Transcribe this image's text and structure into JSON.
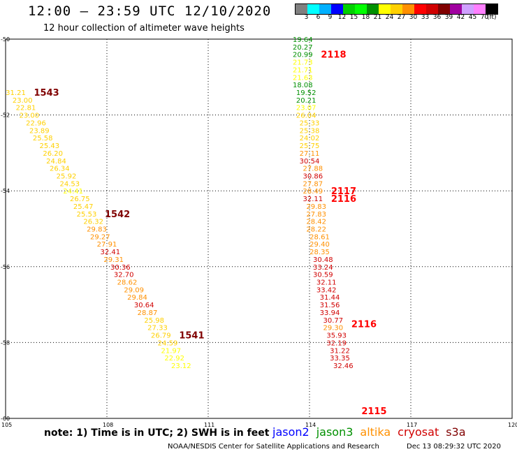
{
  "title": "12:00 – 23:59 UTC 12/10/2020",
  "subtitle": "12 hour collection of altimeter wave heights",
  "colorbar": {
    "unit": "(ft)",
    "colors": [
      "#808080",
      "#00ffff",
      "#00b0ff",
      "#0000ff",
      "#00d000",
      "#00ff00",
      "#009000",
      "#ffff00",
      "#ffd000",
      "#ff9000",
      "#ff0000",
      "#d00000",
      "#800000",
      "#a000a0",
      "#d0a0ff",
      "#ff80ff",
      "#000000"
    ],
    "labels": [
      "3",
      "6",
      "9",
      "12",
      "15",
      "18",
      "21",
      "24",
      "27",
      "30",
      "33",
      "36",
      "39",
      "42",
      "45",
      "70"
    ]
  },
  "axes": {
    "lon_ticks": [
      "105",
      "108",
      "111",
      "114",
      "117",
      "120"
    ],
    "lat_ticks": [
      "-50",
      "-52",
      "-54",
      "-56",
      "-58",
      "-60"
    ]
  },
  "tracks": [
    {
      "satellite_ids": [
        {
          "id": "1543",
          "lat": -51.4,
          "color": "#800000"
        },
        {
          "id": "1542",
          "lat": -54.6,
          "color": "#800000"
        },
        {
          "id": "1541",
          "lat": -57.8,
          "color": "#800000"
        }
      ],
      "points": [
        {
          "lon": 105.3,
          "lat": -51.4,
          "v": "31.21",
          "c": "#ffd000"
        },
        {
          "lon": 105.5,
          "lat": -51.6,
          "v": "23.00",
          "c": "#ffd000"
        },
        {
          "lon": 105.6,
          "lat": -51.8,
          "v": "22.81",
          "c": "#ffd000"
        },
        {
          "lon": 105.7,
          "lat": -52.0,
          "v": "23.00",
          "c": "#ffd000"
        },
        {
          "lon": 105.9,
          "lat": -52.2,
          "v": "22.96",
          "c": "#ffd000"
        },
        {
          "lon": 106.0,
          "lat": -52.4,
          "v": "23.89",
          "c": "#ffd000"
        },
        {
          "lon": 106.1,
          "lat": -52.6,
          "v": "25.58",
          "c": "#ffd000"
        },
        {
          "lon": 106.3,
          "lat": -52.8,
          "v": "25.43",
          "c": "#ffd000"
        },
        {
          "lon": 106.4,
          "lat": -53.0,
          "v": "26.20",
          "c": "#ffd000"
        },
        {
          "lon": 106.5,
          "lat": -53.2,
          "v": "24.84",
          "c": "#ffd000"
        },
        {
          "lon": 106.6,
          "lat": -53.4,
          "v": "26.34",
          "c": "#ffd000"
        },
        {
          "lon": 106.8,
          "lat": -53.6,
          "v": "25.92",
          "c": "#ffd000"
        },
        {
          "lon": 106.9,
          "lat": -53.8,
          "v": "24.53",
          "c": "#ffd000"
        },
        {
          "lon": 107.0,
          "lat": -54.0,
          "v": "24.41",
          "c": "#ffff00"
        },
        {
          "lon": 107.2,
          "lat": -54.2,
          "v": "26.75",
          "c": "#ffd000"
        },
        {
          "lon": 107.3,
          "lat": -54.4,
          "v": "25.47",
          "c": "#ffd000"
        },
        {
          "lon": 107.4,
          "lat": -54.6,
          "v": "25.53",
          "c": "#ffd000"
        },
        {
          "lon": 107.6,
          "lat": -54.8,
          "v": "26.32",
          "c": "#ffd000"
        },
        {
          "lon": 107.7,
          "lat": -55.0,
          "v": "29.83",
          "c": "#ff9000"
        },
        {
          "lon": 107.8,
          "lat": -55.2,
          "v": "29.27",
          "c": "#ff9000"
        },
        {
          "lon": 108.0,
          "lat": -55.4,
          "v": "27.91",
          "c": "#ff9000"
        },
        {
          "lon": 108.1,
          "lat": -55.6,
          "v": "32.41",
          "c": "#d00000"
        },
        {
          "lon": 108.2,
          "lat": -55.8,
          "v": "29.31",
          "c": "#ff9000"
        },
        {
          "lon": 108.4,
          "lat": -56.0,
          "v": "30.36",
          "c": "#d00000"
        },
        {
          "lon": 108.5,
          "lat": -56.2,
          "v": "32.70",
          "c": "#d00000"
        },
        {
          "lon": 108.6,
          "lat": -56.4,
          "v": "28.62",
          "c": "#ff9000"
        },
        {
          "lon": 108.8,
          "lat": -56.6,
          "v": "29.09",
          "c": "#ff9000"
        },
        {
          "lon": 108.9,
          "lat": -56.8,
          "v": "29.84",
          "c": "#ff9000"
        },
        {
          "lon": 109.1,
          "lat": -57.0,
          "v": "30.64",
          "c": "#d00000"
        },
        {
          "lon": 109.2,
          "lat": -57.2,
          "v": "28.87",
          "c": "#ff9000"
        },
        {
          "lon": 109.4,
          "lat": -57.4,
          "v": "25.98",
          "c": "#ffd000"
        },
        {
          "lon": 109.5,
          "lat": -57.6,
          "v": "27.33",
          "c": "#ffd000"
        },
        {
          "lon": 109.6,
          "lat": -57.8,
          "v": "26.79",
          "c": "#ffd000"
        },
        {
          "lon": 109.8,
          "lat": -58.0,
          "v": "24.59",
          "c": "#ffd000"
        },
        {
          "lon": 109.9,
          "lat": -58.2,
          "v": "21.97",
          "c": "#ffff00"
        },
        {
          "lon": 110.0,
          "lat": -58.4,
          "v": "22.92",
          "c": "#ffff00"
        },
        {
          "lon": 110.2,
          "lat": -58.6,
          "v": "23.12",
          "c": "#ffff00"
        }
      ]
    },
    {
      "satellite_ids": [
        {
          "id": "2118",
          "lat": -50.4,
          "color": "#ff0000"
        },
        {
          "id": "2117",
          "lat": -54.0,
          "color": "#ff0000"
        },
        {
          "id": "2116",
          "lat": -54.2,
          "color": "#ff0000"
        },
        {
          "id": "2116",
          "lat": -57.5,
          "color": "#ff0000"
        },
        {
          "id": "2115",
          "lat": -59.8,
          "color": "#ff0000"
        }
      ],
      "points": [
        {
          "lon": 113.8,
          "lat": -50.0,
          "v": "19.64",
          "c": "#009000"
        },
        {
          "lon": 113.8,
          "lat": -50.2,
          "v": "20.27",
          "c": "#009000"
        },
        {
          "lon": 113.8,
          "lat": -50.4,
          "v": "20.99",
          "c": "#009000"
        },
        {
          "lon": 113.8,
          "lat": -50.6,
          "v": "21.73",
          "c": "#ffff00"
        },
        {
          "lon": 113.8,
          "lat": -50.8,
          "v": "21.71",
          "c": "#ffff00"
        },
        {
          "lon": 113.8,
          "lat": -51.0,
          "v": "21.63",
          "c": "#ffff00"
        },
        {
          "lon": 113.8,
          "lat": -51.2,
          "v": "18.08",
          "c": "#009000"
        },
        {
          "lon": 113.9,
          "lat": -51.4,
          "v": "19.52",
          "c": "#009000"
        },
        {
          "lon": 113.9,
          "lat": -51.6,
          "v": "20.21",
          "c": "#009000"
        },
        {
          "lon": 113.9,
          "lat": -51.8,
          "v": "23.07",
          "c": "#ffff00"
        },
        {
          "lon": 113.9,
          "lat": -52.0,
          "v": "26.04",
          "c": "#ffd000"
        },
        {
          "lon": 114.0,
          "lat": -52.2,
          "v": "25.33",
          "c": "#ffd000"
        },
        {
          "lon": 114.0,
          "lat": -52.4,
          "v": "25.38",
          "c": "#ffd000"
        },
        {
          "lon": 114.0,
          "lat": -52.6,
          "v": "24.02",
          "c": "#ffd000"
        },
        {
          "lon": 114.0,
          "lat": -52.8,
          "v": "25.75",
          "c": "#ffd000"
        },
        {
          "lon": 114.0,
          "lat": -53.0,
          "v": "27.11",
          "c": "#ff9000"
        },
        {
          "lon": 114.0,
          "lat": -53.2,
          "v": "30.54",
          "c": "#d00000"
        },
        {
          "lon": 114.1,
          "lat": -53.4,
          "v": "27.88",
          "c": "#ff9000"
        },
        {
          "lon": 114.1,
          "lat": -53.6,
          "v": "30.86",
          "c": "#d00000"
        },
        {
          "lon": 114.1,
          "lat": -53.8,
          "v": "27.87",
          "c": "#ff9000"
        },
        {
          "lon": 114.1,
          "lat": -54.0,
          "v": "28.49",
          "c": "#ff9000"
        },
        {
          "lon": 114.1,
          "lat": -54.2,
          "v": "32.11",
          "c": "#d00000"
        },
        {
          "lon": 114.2,
          "lat": -54.4,
          "v": "29.83",
          "c": "#ff9000"
        },
        {
          "lon": 114.2,
          "lat": -54.6,
          "v": "27.83",
          "c": "#ff9000"
        },
        {
          "lon": 114.2,
          "lat": -54.8,
          "v": "28.42",
          "c": "#ff9000"
        },
        {
          "lon": 114.2,
          "lat": -55.0,
          "v": "28.22",
          "c": "#ff9000"
        },
        {
          "lon": 114.3,
          "lat": -55.2,
          "v": "28.61",
          "c": "#ff9000"
        },
        {
          "lon": 114.3,
          "lat": -55.4,
          "v": "29.40",
          "c": "#ff9000"
        },
        {
          "lon": 114.3,
          "lat": -55.6,
          "v": "28.35",
          "c": "#ff9000"
        },
        {
          "lon": 114.4,
          "lat": -55.8,
          "v": "30.48",
          "c": "#d00000"
        },
        {
          "lon": 114.4,
          "lat": -56.0,
          "v": "33.24",
          "c": "#d00000"
        },
        {
          "lon": 114.4,
          "lat": -56.2,
          "v": "30.59",
          "c": "#d00000"
        },
        {
          "lon": 114.5,
          "lat": -56.4,
          "v": "32.11",
          "c": "#d00000"
        },
        {
          "lon": 114.5,
          "lat": -56.6,
          "v": "33.42",
          "c": "#d00000"
        },
        {
          "lon": 114.6,
          "lat": -56.8,
          "v": "31.44",
          "c": "#d00000"
        },
        {
          "lon": 114.6,
          "lat": -57.0,
          "v": "31.56",
          "c": "#d00000"
        },
        {
          "lon": 114.6,
          "lat": -57.2,
          "v": "33.94",
          "c": "#d00000"
        },
        {
          "lon": 114.7,
          "lat": -57.4,
          "v": "30.77",
          "c": "#d00000"
        },
        {
          "lon": 114.7,
          "lat": -57.6,
          "v": "29.30",
          "c": "#ff9000"
        },
        {
          "lon": 114.8,
          "lat": -57.8,
          "v": "35.93",
          "c": "#d00000"
        },
        {
          "lon": 114.8,
          "lat": -58.0,
          "v": "32.19",
          "c": "#d00000"
        },
        {
          "lon": 114.9,
          "lat": -58.2,
          "v": "31.22",
          "c": "#d00000"
        },
        {
          "lon": 114.9,
          "lat": -58.4,
          "v": "33.35",
          "c": "#d00000"
        },
        {
          "lon": 115.0,
          "lat": -58.6,
          "v": "32.46",
          "c": "#d00000"
        }
      ]
    }
  ],
  "note": "note: 1) Time is in UTC; 2) SWH is in feet",
  "legend": [
    {
      "label": "jason2",
      "color": "#0000ff"
    },
    {
      "label": "jason3",
      "color": "#009000"
    },
    {
      "label": "altika",
      "color": "#ff9000"
    },
    {
      "label": "cryosat",
      "color": "#d00000"
    },
    {
      "label": "s3a",
      "color": "#800000"
    }
  ],
  "credit": "NOAA/NESDIS Center for Satellite Applications and Research",
  "timestamp": "Dec 13 08:29:32 UTC 2020"
}
